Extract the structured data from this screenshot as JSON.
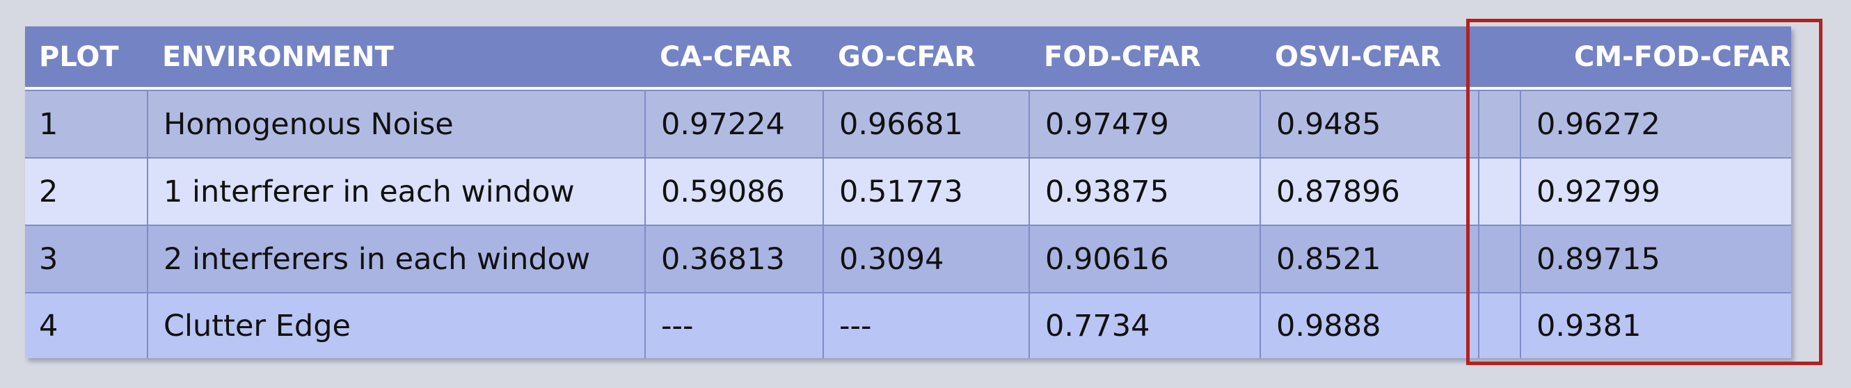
{
  "chart_data": {
    "type": "table",
    "columns": [
      "PLOT",
      "ENVIRONMENT",
      "CA-CFAR",
      "GO-CFAR",
      "FOD-CFAR",
      "OSVI-CFAR",
      "CM-FOD-CFAR"
    ],
    "rows": [
      [
        "1",
        "Homogenous Noise",
        "0.97224",
        "0.96681",
        "0.97479",
        "0.9485",
        "0.96272"
      ],
      [
        "2",
        "1 interferer in each window",
        "0.59086",
        "0.51773",
        "0.93875",
        "0.87896",
        "0.92799"
      ],
      [
        "3",
        "2 interferers in each window",
        "0.36813",
        "0.3094",
        "0.90616",
        "0.8521",
        "0.89715"
      ],
      [
        "4",
        "Clutter Edge",
        "---",
        "---",
        "0.7734",
        "0.9888",
        "0.9381"
      ]
    ],
    "highlighted_column": "CM-FOD-CFAR"
  },
  "colors": {
    "header_bg": "#7383c4",
    "row_1_bg": "#b1bbe2",
    "row_2_bg": "#dbe1fa",
    "row_3_bg": "#a9b4e2",
    "row_4_bg": "#b9c5f4",
    "highlight_border": "#b3211f",
    "page_bg": "#d6d9e2"
  }
}
